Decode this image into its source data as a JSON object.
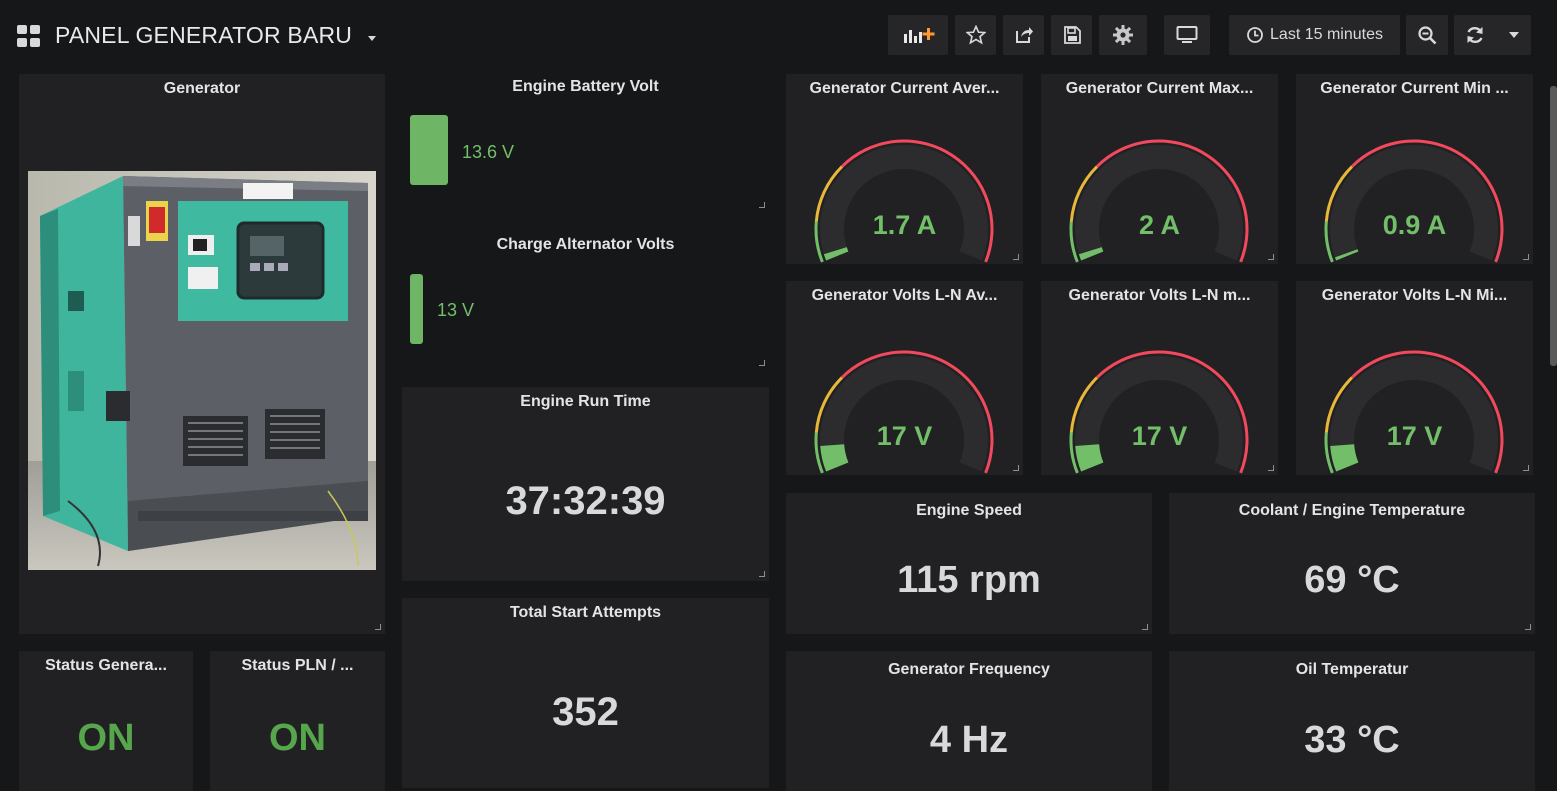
{
  "header": {
    "title": "PANEL GENERATOR BARU",
    "time_range": "Last 15 minutes",
    "buttons": [
      "add-panel-icon",
      "star-icon",
      "share-icon",
      "save-icon",
      "gear-icon",
      "tv-icon",
      "zoom-out-icon",
      "refresh-icon",
      "caret-down-icon"
    ]
  },
  "panels": {
    "generator_image": {
      "title": "Generator"
    },
    "battery": {
      "title": "Engine Battery Volt",
      "value": "13.6 V",
      "level": 0.68
    },
    "alternator": {
      "title": "Charge Alternator Volts",
      "value": "13 V",
      "level": 0.65
    },
    "run_time": {
      "title": "Engine Run Time",
      "value": "37:32:39"
    },
    "start_attempts": {
      "title": "Total Start Attempts",
      "value": "352"
    },
    "status_gen": {
      "title": "Status Genera...",
      "value": "ON"
    },
    "status_pln": {
      "title": "Status PLN / ...",
      "value": "ON"
    },
    "gauges": [
      {
        "title": "Generator Current Aver...",
        "value": "1.7 A",
        "fraction": 0.02
      },
      {
        "title": "Generator Current Max...",
        "value": "2 A",
        "fraction": 0.02
      },
      {
        "title": "Generator Current Min ...",
        "value": "0.9 A",
        "fraction": 0.01
      },
      {
        "title": "Generator Volts L-N Av...",
        "value": "17 V",
        "fraction": 0.08
      },
      {
        "title": "Generator Volts L-N m...",
        "value": "17 V",
        "fraction": 0.08
      },
      {
        "title": "Generator Volts L-N Mi...",
        "value": "17 V",
        "fraction": 0.08
      }
    ],
    "engine_speed": {
      "title": "Engine Speed",
      "value": "115 rpm"
    },
    "coolant": {
      "title": "Coolant / Engine Temperature",
      "value": "69 °C"
    },
    "frequency": {
      "title": "Generator Frequency",
      "value": "4 Hz"
    },
    "oil": {
      "title": "Oil Temperatur",
      "value": "33 °C"
    }
  },
  "colors": {
    "green": "#73bf69",
    "yellow": "#eab839",
    "red": "#f2495c",
    "panel_bg": "#212124",
    "page_bg": "#161719"
  }
}
